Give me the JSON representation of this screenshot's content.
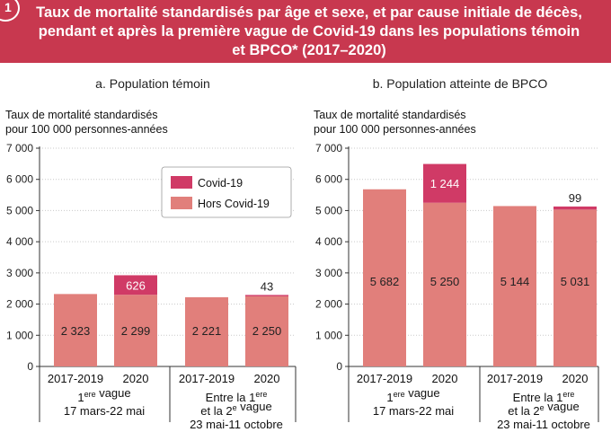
{
  "header": {
    "title": "Taux de mortalité standardisés par âge et sexe, et par cause initiale de décès,\npendant et après la première vague de Covid-19 dans les populations témoin\net BPCO* (2017–2020)",
    "tab_number": "1",
    "color": "#c8384f"
  },
  "colors": {
    "hors_covid": "#e17f7b",
    "covid": "#d03a66",
    "grid": "#c9c9c9"
  },
  "chart_data": [
    {
      "type": "bar",
      "stacked": true,
      "title": "a. Population témoin",
      "ylabel": "Taux de mortalité standardisés\npour 100 000 personnes-années",
      "ylim": [
        0,
        7000
      ],
      "yticks": [
        "0",
        "1 000",
        "2 000",
        "3 000",
        "4 000",
        "5 000",
        "6 000",
        "7 000"
      ],
      "grid": true,
      "legend": {
        "position": "top-right",
        "entries": [
          "Covid-19",
          "Hors Covid-19"
        ]
      },
      "categories": [
        "2017-2019",
        "2020",
        "2017-2019",
        "2020"
      ],
      "groups": [
        {
          "label": "1ere vague\n17 mars-22 mai"
        },
        {
          "label": "Entre la 1ere\net la 2e vague\n23 mai-11 octobre"
        }
      ],
      "series": [
        {
          "name": "Hors Covid-19",
          "values": [
            2323,
            2299,
            2221,
            2250
          ],
          "labels": [
            "2 323",
            "2 299",
            "2 221",
            "2 250"
          ]
        },
        {
          "name": "Covid-19",
          "values": [
            0,
            626,
            0,
            43
          ],
          "labels": [
            "",
            "626",
            "",
            "43"
          ]
        }
      ]
    },
    {
      "type": "bar",
      "stacked": true,
      "title": "b. Population atteinte de BPCO",
      "ylabel": "Taux de mortalité standardisés\npour 100 000 personnes-années",
      "ylim": [
        0,
        7000
      ],
      "yticks": [
        "0",
        "1 000",
        "2 000",
        "3 000",
        "4 000",
        "5 000",
        "6 000",
        "7 000"
      ],
      "grid": true,
      "categories": [
        "2017-2019",
        "2020",
        "2017-2019",
        "2020"
      ],
      "groups": [
        {
          "label": "1ere vague\n17 mars-22 mai"
        },
        {
          "label": "Entre la 1ere\net la 2e vague\n23 mai-11 octobre"
        }
      ],
      "series": [
        {
          "name": "Hors Covid-19",
          "values": [
            5682,
            5250,
            5144,
            5031
          ],
          "labels": [
            "5 682",
            "5 250",
            "5 144",
            "5 031"
          ]
        },
        {
          "name": "Covid-19",
          "values": [
            0,
            1244,
            0,
            99
          ],
          "labels": [
            "",
            "1 244",
            "",
            "99"
          ]
        }
      ]
    }
  ]
}
